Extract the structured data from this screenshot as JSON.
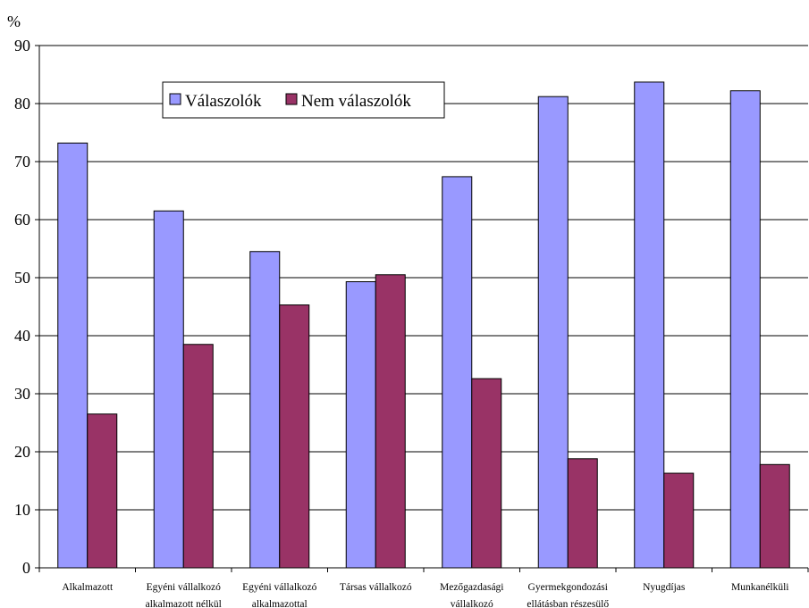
{
  "chart_data": {
    "type": "bar",
    "ylabel": "%",
    "ylim": [
      0,
      90
    ],
    "yticks": [
      0,
      10,
      20,
      30,
      40,
      50,
      60,
      70,
      80,
      90
    ],
    "grid": true,
    "legend_position": "top-left inside plot",
    "categories": [
      [
        "Alkalmazott"
      ],
      [
        "Egyéni vállalkozó",
        "alkalmazott nélkül"
      ],
      [
        "Egyéni vállalkozó",
        "alkalmazottal"
      ],
      [
        "Társas vállalkozó"
      ],
      [
        "Mezőgazdasági",
        "vállalkozó"
      ],
      [
        "Gyermekgondozási",
        "ellátásban részesülő"
      ],
      [
        "Nyugdíjas"
      ],
      [
        "Munkanélküli"
      ]
    ],
    "series": [
      {
        "name": "Válaszolók",
        "color": "#9999ff",
        "values": [
          73.2,
          61.5,
          54.5,
          49.3,
          67.4,
          81.2,
          83.7,
          82.2
        ]
      },
      {
        "name": "Nem válaszolók",
        "color": "#993366",
        "values": [
          26.5,
          38.5,
          45.3,
          50.5,
          32.6,
          18.8,
          16.3,
          17.8
        ]
      }
    ]
  }
}
